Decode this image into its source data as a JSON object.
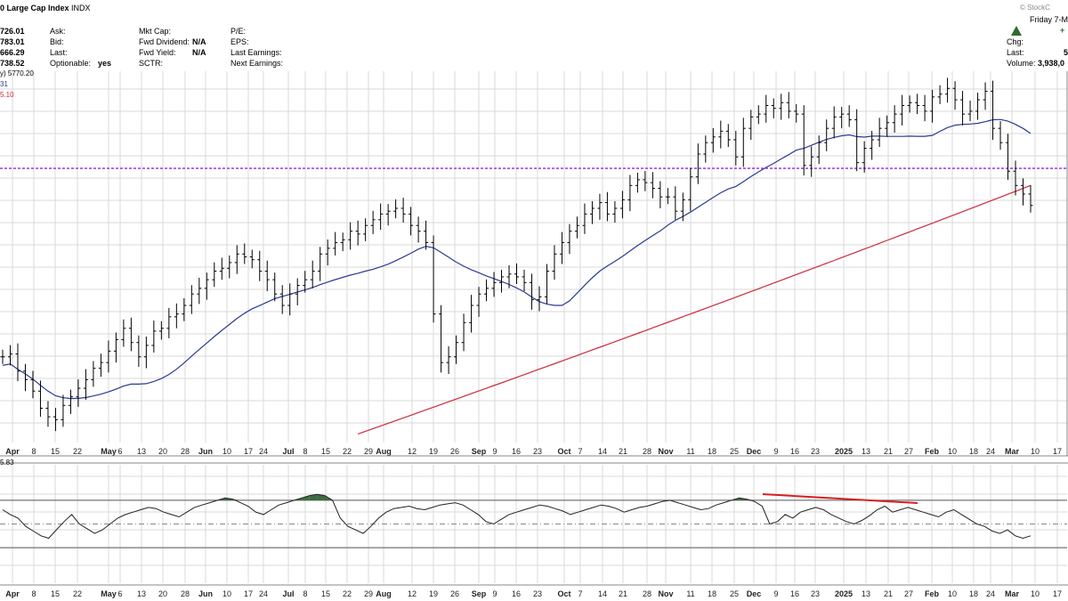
{
  "header": {
    "title": "0 Large Cap Index",
    "exchange": "INDX",
    "date": "Friday  7-M",
    "watermark": "© StockC",
    "left_values": [
      "726.01",
      "783.01",
      "666.29",
      "738.52"
    ],
    "col_a": [
      "Ask:",
      "Bid:",
      "Last:",
      "Optionable:"
    ],
    "optionable_value": "yes",
    "col_b": [
      "Mkt Cap:",
      "Fwd Dividend:",
      "Fwd Yield:",
      "SCTR:"
    ],
    "col_b_values": [
      "",
      "N/A",
      "N/A",
      ""
    ],
    "col_c": [
      "P/E:",
      "EPS:",
      "Last Earnings:",
      "Next Earnings:"
    ],
    "right_labels": [
      "Chg:",
      "Last:",
      "Volume:"
    ],
    "right_values": [
      "",
      "5",
      "3,938,0"
    ],
    "right_plus": "+",
    "ma_label": "y) 5770.20",
    "ma50_label": "31",
    "ma200_label": "5.10",
    "osc_label": "5.83"
  },
  "colors": {
    "ma50": "#2b3a8f",
    "ma200": "#cc2a3a",
    "resistance": "#8a2be2",
    "divergence": "#d62020",
    "fill": "#3f6b3f",
    "up_arrow": "#2e6b2e",
    "grid": "#d9d9d9"
  },
  "chart_data": [
    {
      "type": "line",
      "title": "0 Large Cap Index",
      "x_labels": [
        "Apr",
        "8",
        "15",
        "22",
        "May",
        "6",
        "13",
        "20",
        "28",
        "Jun",
        "10",
        "17",
        "24",
        "Jul",
        "8",
        "15",
        "22",
        "29",
        "Aug",
        "12",
        "19",
        "26",
        "Sep",
        "9",
        "16",
        "23",
        "Oct",
        "7",
        "14",
        "21",
        "28",
        "Nov",
        "11",
        "18",
        "25",
        "Dec",
        "9",
        "16",
        "23",
        "2025",
        "13",
        "21",
        "27",
        "Feb",
        "10",
        "18",
        "24",
        "Mar",
        "10",
        "17"
      ],
      "ohlc_closes": [
        5200,
        5210,
        5150,
        5120,
        5080,
        5020,
        4990,
        4980,
        5030,
        5060,
        5090,
        5120,
        5160,
        5180,
        5220,
        5260,
        5300,
        5250,
        5200,
        5240,
        5290,
        5300,
        5340,
        5350,
        5380,
        5420,
        5440,
        5470,
        5500,
        5510,
        5530,
        5560,
        5550,
        5540,
        5500,
        5470,
        5420,
        5380,
        5420,
        5450,
        5470,
        5500,
        5560,
        5580,
        5600,
        5610,
        5640,
        5630,
        5660,
        5680,
        5700,
        5710,
        5720,
        5700,
        5660,
        5640,
        5600,
        5350,
        5180,
        5200,
        5250,
        5320,
        5380,
        5420,
        5440,
        5460,
        5480,
        5490,
        5480,
        5460,
        5400,
        5410,
        5500,
        5560,
        5600,
        5640,
        5660,
        5700,
        5720,
        5740,
        5700,
        5720,
        5750,
        5800,
        5820,
        5810,
        5790,
        5760,
        5760,
        5710,
        5750,
        5830,
        5910,
        5950,
        5970,
        5990,
        5960,
        5900,
        6000,
        6040,
        6050,
        6080,
        6070,
        6090,
        6060,
        6050,
        5870,
        5900,
        5950,
        6000,
        6040,
        6050,
        6030,
        5880,
        5930,
        5960,
        6000,
        6020,
        6050,
        6080,
        6090,
        6080,
        6060,
        6110,
        6120,
        6140,
        6100,
        6050,
        6060,
        6100,
        6130,
        6000,
        5950,
        5850,
        5800,
        5770,
        5730
      ],
      "series": [],
      "resistance_level": 5860,
      "ylim": [
        4900,
        6200
      ]
    },
    {
      "type": "line",
      "title": "",
      "values": [
        62,
        58,
        55,
        48,
        44,
        40,
        38,
        45,
        52,
        58,
        50,
        46,
        42,
        45,
        50,
        55,
        58,
        60,
        62,
        64,
        63,
        60,
        58,
        56,
        60,
        64,
        66,
        68,
        70,
        72,
        71,
        68,
        65,
        60,
        58,
        62,
        66,
        68,
        70,
        72,
        74,
        75,
        74,
        70,
        55,
        48,
        45,
        42,
        48,
        55,
        60,
        63,
        64,
        65,
        63,
        62,
        64,
        66,
        67,
        68,
        66,
        62,
        58,
        52,
        50,
        54,
        58,
        60,
        62,
        64,
        66,
        65,
        63,
        61,
        58,
        60,
        62,
        64,
        66,
        65,
        63,
        60,
        62,
        64,
        65,
        67,
        69,
        70,
        68,
        66,
        64,
        62,
        63,
        66,
        68,
        70,
        72,
        71,
        69,
        65,
        50,
        52,
        58,
        55,
        60,
        62,
        64,
        62,
        58,
        55,
        52,
        50,
        53,
        57,
        62,
        65,
        60,
        62,
        64,
        62,
        60,
        58,
        56,
        60,
        62,
        58,
        54,
        50,
        48,
        44,
        42,
        45,
        40,
        38,
        40
      ],
      "overbought": 70,
      "oversold": 30
    }
  ]
}
